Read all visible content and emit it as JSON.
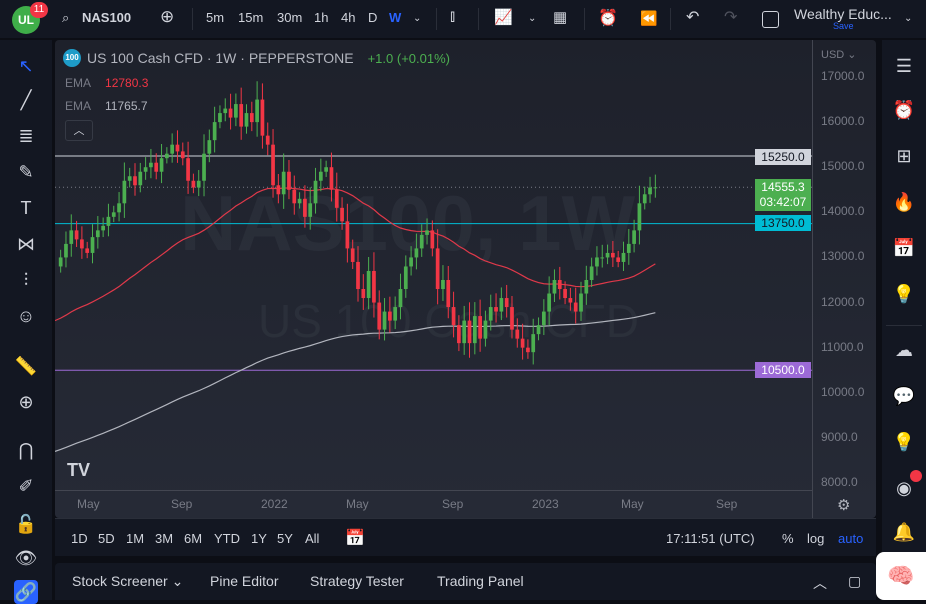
{
  "top": {
    "logo": "UL",
    "notif": "11",
    "symbol": "NAS100",
    "intervals": [
      "5m",
      "15m",
      "30m",
      "1h",
      "4h",
      "D",
      "W"
    ],
    "active_interval": "W",
    "layout_name": "Wealthy Educ...",
    "save": "Save"
  },
  "legend": {
    "title": "US 100 Cash CFD · 1W · PEPPERSTONE",
    "icon": "100",
    "change": "+1.0 (+0.01%)",
    "ema1_label": "EMA",
    "ema1_value": "12780.3",
    "ema2_label": "EMA",
    "ema2_value": "11765.7"
  },
  "watermark": {
    "line1": "NAS100, 1W",
    "line2": "US 100 Cash CFD"
  },
  "axis": {
    "currency": "USD",
    "ticks": [
      "17000.0",
      "16000.0",
      "15000.0",
      "14000.0",
      "13000.0",
      "12000.0",
      "11000.0",
      "10000.0",
      "9000.0",
      "8000.0"
    ],
    "time_labels": [
      "May",
      "Sep",
      "2022",
      "May",
      "Sep",
      "2023",
      "May",
      "Sep"
    ]
  },
  "levels": {
    "l15250": "15250.0",
    "current": "14555.3",
    "countdown": "03:42:07",
    "l13750": "13750.0",
    "l10500": "10500.0"
  },
  "colors": {
    "up": "#26a69a",
    "down": "#ef5350",
    "bull": "#4caf50",
    "bear": "#f23645",
    "cyan": "#00bcd4",
    "purple": "#9c6ad6"
  },
  "chart_data": {
    "type": "candlestick",
    "ylim": [
      8000,
      17000
    ],
    "closes": [
      13000,
      13300,
      13600,
      13400,
      13200,
      13100,
      13450,
      13600,
      13700,
      13900,
      14000,
      14200,
      14700,
      14800,
      14600,
      14900,
      15000,
      15100,
      14900,
      15200,
      15300,
      15500,
      15350,
      15200,
      14700,
      14550,
      14700,
      15300,
      15600,
      16000,
      16200,
      16300,
      16100,
      16400,
      15900,
      16200,
      16000,
      16500,
      15700,
      15500,
      14600,
      14400,
      14900,
      14500,
      14200,
      14300,
      13900,
      14200,
      14700,
      14900,
      15000,
      14500,
      14100,
      13800,
      13200,
      12900,
      12300,
      12100,
      12700,
      12000,
      11400,
      11800,
      11600,
      11900,
      12300,
      12800,
      13000,
      13200,
      13500,
      13600,
      13200,
      12300,
      12500,
      11900,
      11500,
      11100,
      11600,
      11100,
      11700,
      11200,
      11600,
      11900,
      11800,
      12100,
      11900,
      11400,
      11200,
      11000,
      10900,
      11300,
      11500,
      11800,
      12200,
      12500,
      12300,
      12100,
      12000,
      11800,
      12200,
      12500,
      12800,
      13000,
      13000,
      13100,
      13000,
      12900,
      13100,
      13300,
      13600,
      14200,
      14400,
      14550,
      14555
    ],
    "first_open": 12800,
    "ema_seeds": [
      11600,
      8700
    ],
    "hlines": [
      15250,
      14555.3,
      13750,
      10500
    ]
  },
  "bottom": {
    "ranges": [
      "1D",
      "5D",
      "1M",
      "3M",
      "6M",
      "YTD",
      "1Y",
      "5Y",
      "All"
    ],
    "time": "17:11:51 (UTC)",
    "pct": "%",
    "log": "log",
    "auto": "auto"
  },
  "tabs": [
    "Stock Screener",
    "Pine Editor",
    "Strategy Tester",
    "Trading Panel"
  ]
}
